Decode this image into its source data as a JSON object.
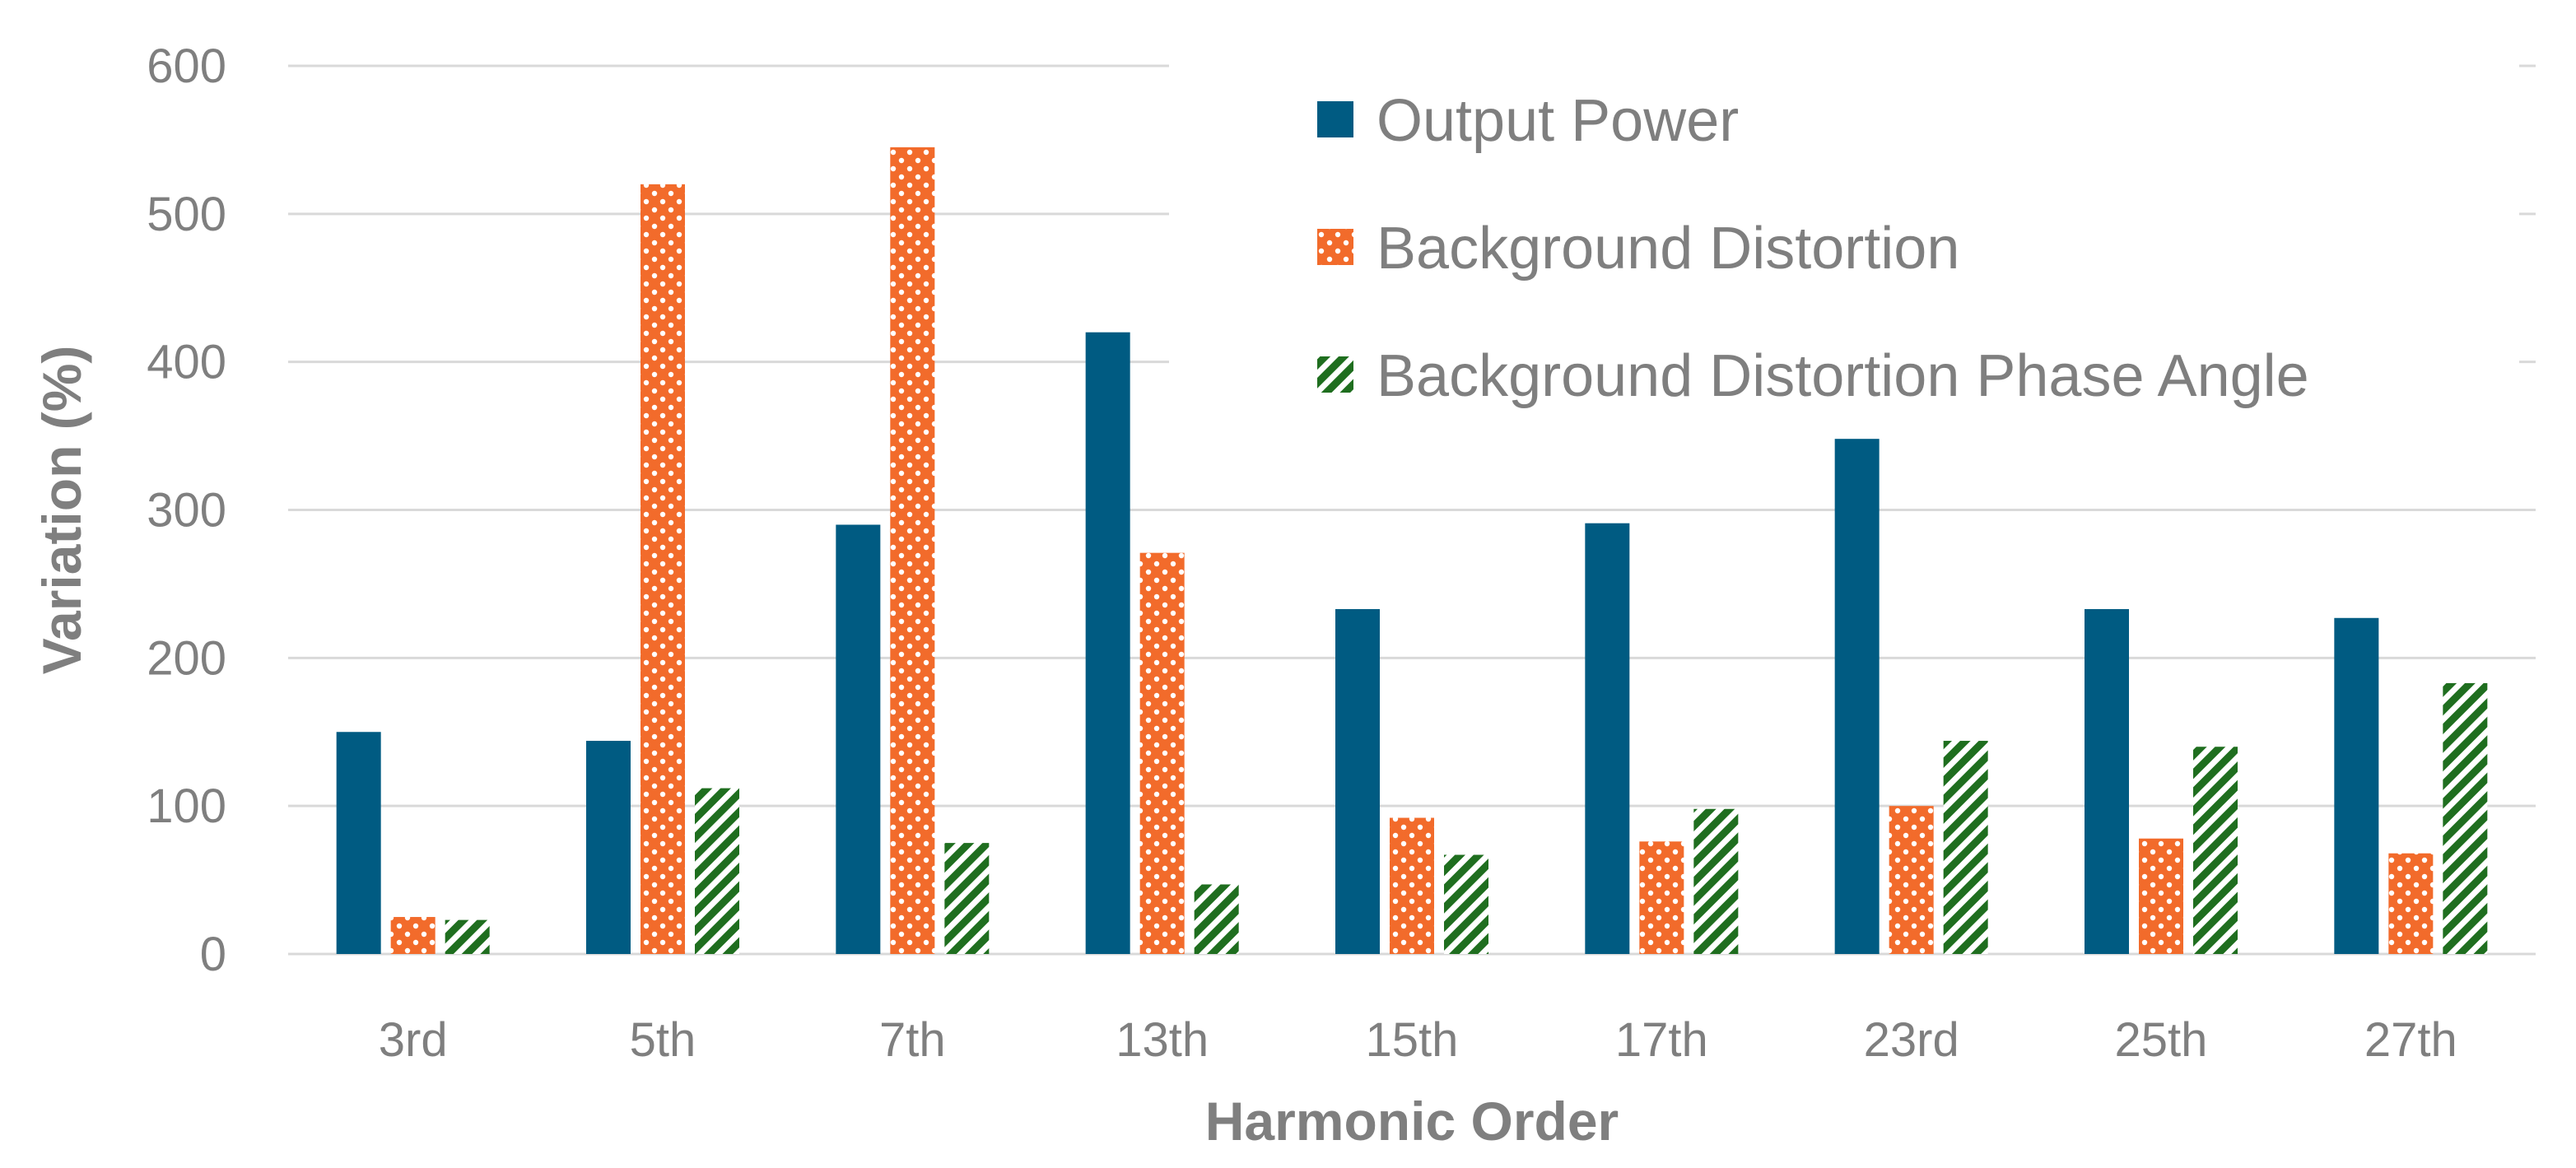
{
  "chart_data": {
    "type": "bar",
    "title": "",
    "xlabel": "Harmonic Order",
    "ylabel": "Variation (%)",
    "ylim": [
      0,
      600
    ],
    "yticks": [
      0,
      100,
      200,
      300,
      400,
      500,
      600
    ],
    "grid": true,
    "legend_position": "top-right",
    "categories": [
      "3rd",
      "5th",
      "7th",
      "13th",
      "15th",
      "17th",
      "23rd",
      "25th",
      "27th"
    ],
    "series": [
      {
        "name": "Output Power",
        "color": "#005b82",
        "pattern": "solid",
        "values": [
          150,
          144,
          290,
          420,
          233,
          291,
          348,
          233,
          227
        ]
      },
      {
        "name": "Background Distortion",
        "color": "#f26b2b",
        "pattern": "dots",
        "values": [
          25,
          520,
          545,
          271,
          92,
          76,
          100,
          78,
          68
        ]
      },
      {
        "name": "Background Distortion Phase Angle",
        "color": "#1f6e1f",
        "pattern": "diagonal-stripes",
        "values": [
          23,
          112,
          75,
          47,
          67,
          98,
          144,
          140,
          183
        ]
      }
    ]
  }
}
